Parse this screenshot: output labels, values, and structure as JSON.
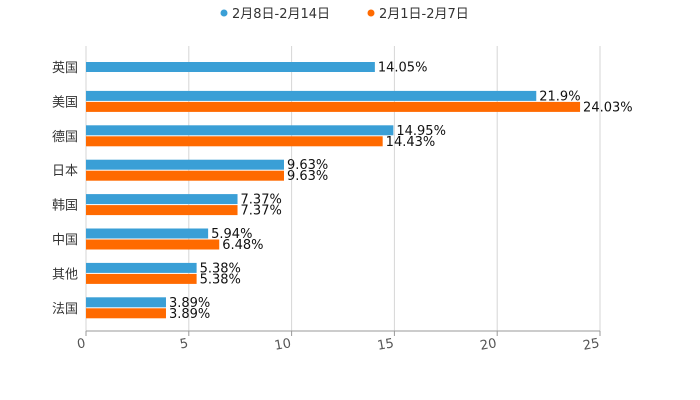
{
  "chart_data": {
    "type": "bar",
    "orientation": "horizontal",
    "title": "",
    "xlabel": "",
    "ylabel": "",
    "categories": [
      "英国",
      "美国",
      "德国",
      "日本",
      "韩国",
      "中国",
      "其他",
      "法国"
    ],
    "series": [
      {
        "name": "2月8日-2月14日",
        "color": "#3a9fd6",
        "values": [
          14.05,
          21.9,
          14.95,
          9.63,
          7.37,
          5.94,
          5.38,
          3.89
        ],
        "labels": [
          "14.05%",
          "21.9%",
          "14.95%",
          "9.63%",
          "7.37%",
          "5.94%",
          "5.38%",
          "3.89%"
        ]
      },
      {
        "name": "2月1日-2月7日",
        "color": "#ff6a00",
        "values": [
          null,
          24.03,
          14.43,
          9.63,
          7.37,
          6.48,
          5.38,
          3.89
        ],
        "labels": [
          "",
          "24.03%",
          "14.43%",
          "9.63%",
          "7.37%",
          "6.48%",
          "5.38%",
          "3.89%"
        ]
      }
    ],
    "xlim": [
      0,
      25
    ],
    "ticks": [
      0,
      5,
      10,
      15,
      20,
      25
    ],
    "tick_labels": [
      "0",
      "5",
      "10",
      "15",
      "20",
      "25"
    ],
    "grid": true,
    "legend_position": "top-center"
  }
}
